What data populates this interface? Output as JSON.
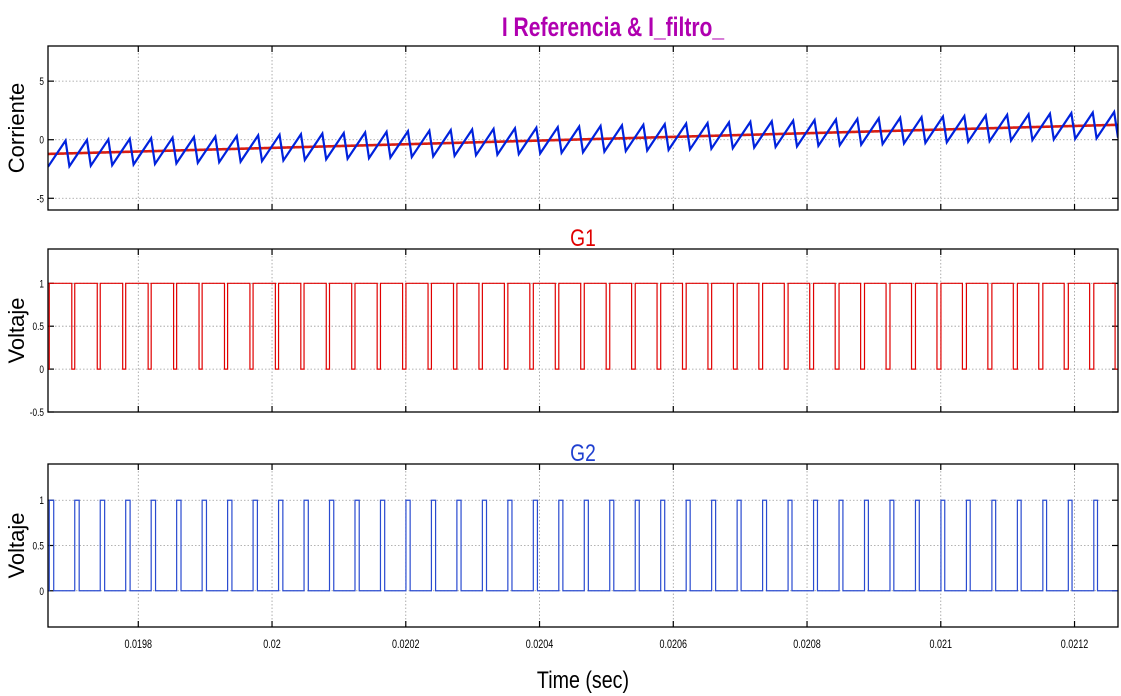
{
  "figure": {
    "xlabel": "Time (sec)",
    "x_ticks": [
      0.0198,
      0.02,
      0.0202,
      0.0204,
      0.0206,
      0.0208,
      0.021,
      0.0212
    ],
    "x_tick_labels": [
      "0.0198",
      "0.02",
      "0.0202",
      "0.0204",
      "0.0206",
      "0.0208",
      "0.021",
      "0.0212"
    ],
    "xlim": [
      0.019665,
      0.021265
    ]
  },
  "chart_data": [
    {
      "type": "line",
      "title": "I Referencia & I_filtro_",
      "title_color": "#b000b0",
      "ylabel": "Corriente",
      "ylim": [
        -6,
        8
      ],
      "y_ticks": [
        -5,
        0,
        5
      ],
      "y_tick_labels": [
        "-5",
        "0",
        "5"
      ],
      "grid": true,
      "series": [
        {
          "role": "reference_sine",
          "color": "#d81f12",
          "amplitude": 5,
          "frequency_hz": 50,
          "phase_rad": -0.14,
          "x_range": [
            0.019665,
            0.021265
          ]
        },
        {
          "role": "filtered_current_ripple",
          "color": "#0022dd",
          "amplitude": 5,
          "frequency_hz": 50,
          "phase_rad": -0.14,
          "ripple_pp": 2.2,
          "switching_cycles": 50,
          "x_range": [
            0.019665,
            0.021265
          ]
        }
      ]
    },
    {
      "type": "line",
      "title": "G1",
      "title_color": "#e00000",
      "ylabel": "Voltaje",
      "ylim": [
        -0.5,
        1.4
      ],
      "y_ticks": [
        -0.5,
        0,
        0.5,
        1
      ],
      "y_tick_labels": [
        "-0.5",
        "0",
        "0.5",
        "1"
      ],
      "grid": true,
      "series": [
        {
          "role": "gate_signal",
          "color": "#e00000",
          "levels": [
            0,
            1
          ],
          "pulses": 42,
          "x_range": [
            0.019665,
            0.021265
          ]
        }
      ]
    },
    {
      "type": "line",
      "title": "G2",
      "title_color": "#2040d0",
      "ylabel": "Voltaje",
      "ylim": [
        -0.4,
        1.4
      ],
      "y_ticks": [
        0,
        0.5,
        1
      ],
      "y_tick_labels": [
        "0",
        "0.5",
        "1"
      ],
      "grid": true,
      "series": [
        {
          "role": "gate_signal",
          "color": "#2a4bd0",
          "levels": [
            0,
            1
          ],
          "pulses": 42,
          "x_range": [
            0.019665,
            0.021265
          ]
        }
      ]
    }
  ]
}
